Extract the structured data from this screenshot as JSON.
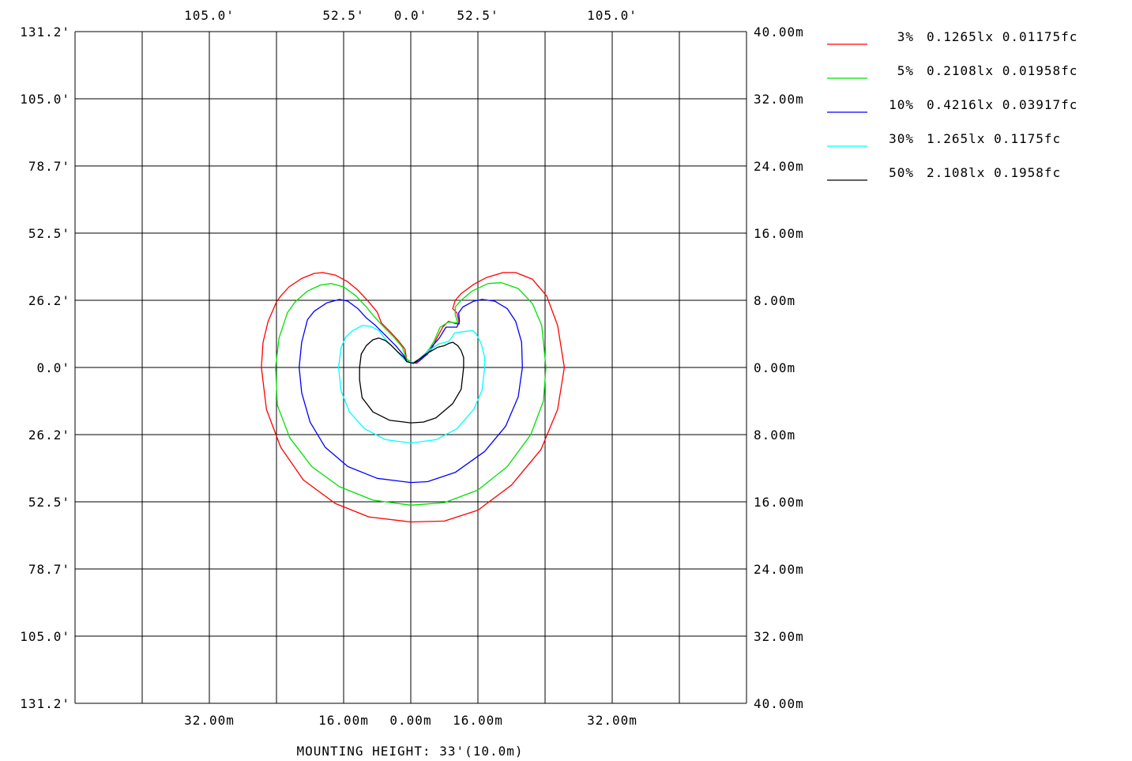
{
  "chart_data": {
    "type": "line",
    "title": "",
    "footer": "MOUNTING HEIGHT: 33'(10.0m)",
    "x_range_m": [
      -40,
      40
    ],
    "y_range_m": [
      -40,
      40
    ],
    "grid": true,
    "legend_position": "right",
    "top_ticks_ft": [
      "105.0'",
      "52.5'",
      "0.0'",
      "52.5'",
      "105.0'"
    ],
    "bottom_ticks_m": [
      "32.00m",
      "16.00m",
      "0.00m",
      "16.00m",
      "32.00m"
    ],
    "left_ticks_ft": [
      "131.2'",
      "105.0'",
      "78.7'",
      "52.5'",
      "26.2'",
      "0.0'",
      "26.2'",
      "52.5'",
      "78.7'",
      "105.0'",
      "131.2'"
    ],
    "right_ticks_m": [
      "40.00m",
      "32.00m",
      "24.00m",
      "16.00m",
      "8.00m",
      "0.00m",
      "8.00m",
      "16.00m",
      "24.00m",
      "32.00m",
      "40.00m"
    ],
    "series": [
      {
        "name": "3% 0.1265lx 0.01175fc",
        "color": "#ff0000",
        "points": [
          [
            0,
            -18.4
          ],
          [
            -5,
            -17.8
          ],
          [
            -9,
            -16.2
          ],
          [
            -12.8,
            -13.4
          ],
          [
            -15.5,
            -9.5
          ],
          [
            -17.2,
            -5
          ],
          [
            -17.8,
            0
          ],
          [
            -17.6,
            3
          ],
          [
            -17,
            5.5
          ],
          [
            -16,
            7.8
          ],
          [
            -15.5,
            8.5
          ],
          [
            -14.5,
            9.6
          ],
          [
            -13,
            10.6
          ],
          [
            -11.5,
            11.2
          ],
          [
            -10.5,
            11.3
          ],
          [
            -9,
            11
          ],
          [
            -7.5,
            10.2
          ],
          [
            -6.3,
            9.2
          ],
          [
            -5,
            7.8
          ],
          [
            -4,
            6.6
          ],
          [
            -3.5,
            5.3
          ],
          [
            -2.5,
            4.3
          ],
          [
            -1.5,
            3.2
          ],
          [
            -0.7,
            2.2
          ],
          [
            -0.5,
            1
          ],
          [
            0,
            0.6
          ],
          [
            0.7,
            0.5
          ],
          [
            1.3,
            1
          ],
          [
            2.5,
            2.2
          ],
          [
            3,
            3.3
          ],
          [
            3.8,
            4.8
          ],
          [
            4.5,
            5.5
          ],
          [
            5.4,
            5.2
          ],
          [
            5.8,
            5.2
          ],
          [
            5.5,
            6.5
          ],
          [
            5,
            7
          ],
          [
            5.3,
            8
          ],
          [
            6,
            8.8
          ],
          [
            7.5,
            9.9
          ],
          [
            9,
            10.7
          ],
          [
            11,
            11.3
          ],
          [
            12.5,
            11.3
          ],
          [
            14.5,
            10.5
          ],
          [
            16.2,
            8.5
          ],
          [
            17.5,
            5
          ],
          [
            18.3,
            0
          ],
          [
            17.5,
            -5
          ],
          [
            15.5,
            -9.8
          ],
          [
            12,
            -14
          ],
          [
            8,
            -17
          ],
          [
            4,
            -18.3
          ],
          [
            0,
            -18.4
          ]
        ]
      },
      {
        "name": "5% 0.2108lx 0.01958fc",
        "color": "#00e000",
        "points": [
          [
            0,
            -16.4
          ],
          [
            -4.5,
            -15.8
          ],
          [
            -8.5,
            -14.2
          ],
          [
            -11.8,
            -11.8
          ],
          [
            -14.4,
            -8.4
          ],
          [
            -15.9,
            -4.5
          ],
          [
            -16.1,
            0
          ],
          [
            -15.7,
            3.5
          ],
          [
            -14.7,
            6.5
          ],
          [
            -13.8,
            7.8
          ],
          [
            -12.3,
            9.1
          ],
          [
            -10.8,
            9.8
          ],
          [
            -9.5,
            10
          ],
          [
            -8,
            9.6
          ],
          [
            -6.5,
            8.5
          ],
          [
            -5.2,
            7.1
          ],
          [
            -4.3,
            6
          ],
          [
            -3,
            4.6
          ],
          [
            -2,
            3.6
          ],
          [
            -1,
            2.4
          ],
          [
            -0.5,
            1
          ],
          [
            0.3,
            0.5
          ],
          [
            1,
            0.8
          ],
          [
            2.2,
            2.2
          ],
          [
            2.8,
            3.2
          ],
          [
            3.5,
            4.8
          ],
          [
            4.5,
            5.4
          ],
          [
            5.6,
            5.3
          ],
          [
            5.3,
            6.3
          ],
          [
            5.3,
            7.2
          ],
          [
            6,
            8
          ],
          [
            7.3,
            9.1
          ],
          [
            9.2,
            10
          ],
          [
            10.8,
            10.1
          ],
          [
            12.8,
            9.4
          ],
          [
            14.5,
            7.6
          ],
          [
            15.6,
            5
          ],
          [
            16.1,
            0
          ],
          [
            15.8,
            -4
          ],
          [
            14.3,
            -8
          ],
          [
            11.5,
            -11.8
          ],
          [
            8,
            -14.6
          ],
          [
            4,
            -16.1
          ],
          [
            0,
            -16.4
          ]
        ]
      },
      {
        "name": "10% 0.4216lx 0.03917fc",
        "color": "#0000ff",
        "points": [
          [
            0,
            -13.7
          ],
          [
            -4,
            -13.2
          ],
          [
            -7.5,
            -11.8
          ],
          [
            -10.2,
            -9.5
          ],
          [
            -12,
            -6.5
          ],
          [
            -13,
            -3
          ],
          [
            -13.3,
            0
          ],
          [
            -13,
            3
          ],
          [
            -12.3,
            5.7
          ],
          [
            -11.5,
            6.7
          ],
          [
            -10,
            7.7
          ],
          [
            -8.5,
            8.1
          ],
          [
            -7.5,
            7.9
          ],
          [
            -6.3,
            7
          ],
          [
            -5.3,
            5.9
          ],
          [
            -4.2,
            5
          ],
          [
            -3,
            3.8
          ],
          [
            -1.8,
            2.6
          ],
          [
            -0.8,
            1.4
          ],
          [
            -0.5,
            0.8
          ],
          [
            0.3,
            0.5
          ],
          [
            1,
            0.8
          ],
          [
            2,
            1.6
          ],
          [
            2.6,
            2.6
          ],
          [
            3.4,
            3.5
          ],
          [
            4.2,
            4.8
          ],
          [
            5.5,
            4.8
          ],
          [
            5.8,
            5.5
          ],
          [
            5.7,
            6.5
          ],
          [
            6.2,
            7.2
          ],
          [
            7.5,
            7.9
          ],
          [
            8.5,
            8.1
          ],
          [
            10,
            7.9
          ],
          [
            11.5,
            7
          ],
          [
            12.5,
            5.5
          ],
          [
            13.2,
            3
          ],
          [
            13.3,
            0
          ],
          [
            12.8,
            -3.5
          ],
          [
            11.3,
            -7
          ],
          [
            8.8,
            -10
          ],
          [
            5.3,
            -12.5
          ],
          [
            2,
            -13.6
          ],
          [
            0,
            -13.7
          ]
        ]
      },
      {
        "name": "30% 1.265lx 0.1175fc",
        "color": "#00ffff",
        "points": [
          [
            0,
            -9
          ],
          [
            -3,
            -8.6
          ],
          [
            -5.5,
            -7.3
          ],
          [
            -7.3,
            -5.3
          ],
          [
            -8.3,
            -2.8
          ],
          [
            -8.6,
            0
          ],
          [
            -8.3,
            2.4
          ],
          [
            -7.7,
            3.7
          ],
          [
            -6.9,
            4.4
          ],
          [
            -5.8,
            5
          ],
          [
            -4.8,
            4.9
          ],
          [
            -3.8,
            4.4
          ],
          [
            -3,
            3.3
          ],
          [
            -2,
            2.3
          ],
          [
            -1.2,
            1.4
          ],
          [
            -0.6,
            0.8
          ],
          [
            0.3,
            0.6
          ],
          [
            1,
            1
          ],
          [
            2,
            1.9
          ],
          [
            3.3,
            2.8
          ],
          [
            4.5,
            3.1
          ],
          [
            4.9,
            3.6
          ],
          [
            5.2,
            4.1
          ],
          [
            6.5,
            4.3
          ],
          [
            7.4,
            4.4
          ],
          [
            7.8,
            4
          ],
          [
            8.4,
            2.8
          ],
          [
            8.8,
            1.2
          ],
          [
            8.8,
            0
          ],
          [
            8.5,
            -2.7
          ],
          [
            7.5,
            -5
          ],
          [
            5.5,
            -7.3
          ],
          [
            3,
            -8.6
          ],
          [
            0,
            -9
          ]
        ]
      },
      {
        "name": "50% 2.108lx 0.1958fc",
        "color": "#000000",
        "points": [
          [
            0,
            -6.6
          ],
          [
            -2.5,
            -6.3
          ],
          [
            -4.5,
            -5.3
          ],
          [
            -5.8,
            -3.6
          ],
          [
            -6.1,
            -1.5
          ],
          [
            -6.1,
            0
          ],
          [
            -5.9,
            1.6
          ],
          [
            -5.3,
            2.6
          ],
          [
            -4.5,
            3.3
          ],
          [
            -3.8,
            3.5
          ],
          [
            -3,
            3.2
          ],
          [
            -2.3,
            2.6
          ],
          [
            -1.5,
            1.8
          ],
          [
            -0.8,
            1.2
          ],
          [
            -0.5,
            0.7
          ],
          [
            0.3,
            0.5
          ],
          [
            1,
            1
          ],
          [
            1.8,
            1.6
          ],
          [
            2.5,
            2
          ],
          [
            3.2,
            2.4
          ],
          [
            4,
            2.6
          ],
          [
            4.6,
            2.9
          ],
          [
            5,
            3
          ],
          [
            5.6,
            2.6
          ],
          [
            6,
            2
          ],
          [
            6.3,
            1.2
          ],
          [
            6.3,
            0
          ],
          [
            6,
            -2.6
          ],
          [
            5,
            -4.3
          ],
          [
            3,
            -6
          ],
          [
            1.5,
            -6.5
          ],
          [
            0,
            -6.6
          ]
        ]
      }
    ]
  }
}
